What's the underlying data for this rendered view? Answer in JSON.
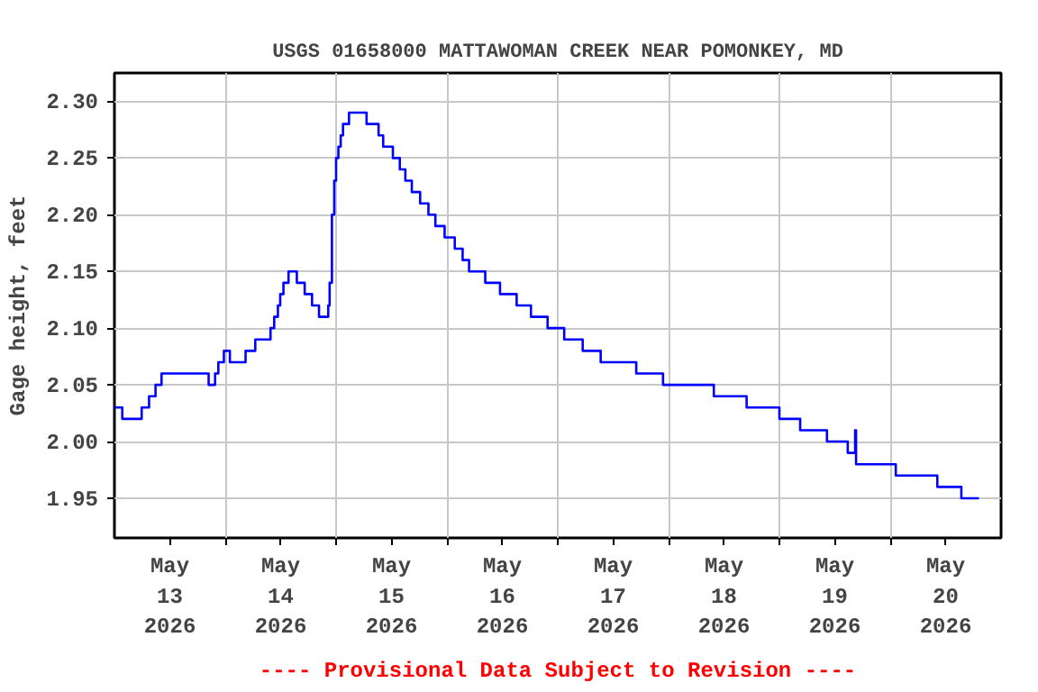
{
  "chart_data": {
    "type": "step",
    "title": "USGS 01658000 MATTAWOMAN CREEK NEAR POMONKEY, MD",
    "ylabel": "Gage height, feet",
    "annotations": [
      "---- Provisional Data Subject to Revision ----"
    ],
    "series": [
      {
        "color": "#0000ff",
        "x": [
          "2026-05-13T00:00",
          "2026-05-13T01:42",
          "2026-05-13T05:54",
          "2026-05-13T07:30",
          "2026-05-13T08:54",
          "2026-05-13T10:12",
          "2026-05-13T20:24",
          "2026-05-13T21:48",
          "2026-05-13T22:30",
          "2026-05-13T23:42",
          "2026-05-14T01:00",
          "2026-05-14T04:24",
          "2026-05-14T06:30",
          "2026-05-14T09:48",
          "2026-05-14T10:36",
          "2026-05-14T11:24",
          "2026-05-14T11:54",
          "2026-05-14T12:36",
          "2026-05-14T13:42",
          "2026-05-14T15:30",
          "2026-05-14T17:12",
          "2026-05-14T18:48",
          "2026-05-14T20:18",
          "2026-05-14T22:18",
          "2026-05-14T22:36",
          "2026-05-14T23:06",
          "2026-05-14T23:36",
          "2026-05-15T00:00",
          "2026-05-15T00:30",
          "2026-05-15T01:00",
          "2026-05-15T01:30",
          "2026-05-15T02:48",
          "2026-05-15T06:36",
          "2026-05-15T09:12",
          "2026-05-15T10:12",
          "2026-05-15T12:18",
          "2026-05-15T13:48",
          "2026-05-15T15:00",
          "2026-05-15T16:24",
          "2026-05-15T18:12",
          "2026-05-15T20:00",
          "2026-05-15T21:30",
          "2026-05-15T23:30",
          "2026-05-16T01:42",
          "2026-05-16T03:24",
          "2026-05-16T04:48",
          "2026-05-16T08:18",
          "2026-05-16T11:30",
          "2026-05-16T15:06",
          "2026-05-16T18:12",
          "2026-05-16T21:48",
          "2026-05-17T01:24",
          "2026-05-17T05:24",
          "2026-05-17T09:18",
          "2026-05-17T17:00",
          "2026-05-17T22:48",
          "2026-05-18T09:48",
          "2026-05-18T16:54",
          "2026-05-19T00:00",
          "2026-05-19T04:30",
          "2026-05-19T10:18",
          "2026-05-19T14:48",
          "2026-05-19T16:24",
          "2026-05-19T16:36",
          "2026-05-20T01:12",
          "2026-05-20T10:12",
          "2026-05-20T15:24",
          "2026-05-20T19:12"
        ],
        "values": [
          2.03,
          2.02,
          2.03,
          2.04,
          2.05,
          2.06,
          2.05,
          2.06,
          2.07,
          2.08,
          2.07,
          2.08,
          2.09,
          2.1,
          2.11,
          2.12,
          2.13,
          2.14,
          2.15,
          2.14,
          2.13,
          2.12,
          2.11,
          2.12,
          2.14,
          2.2,
          2.23,
          2.25,
          2.26,
          2.27,
          2.28,
          2.29,
          2.28,
          2.27,
          2.26,
          2.25,
          2.24,
          2.23,
          2.22,
          2.21,
          2.2,
          2.19,
          2.18,
          2.17,
          2.16,
          2.15,
          2.14,
          2.13,
          2.12,
          2.11,
          2.1,
          2.09,
          2.08,
          2.07,
          2.06,
          2.05,
          2.04,
          2.03,
          2.02,
          2.01,
          2.0,
          1.99,
          2.01,
          1.98,
          1.97,
          1.96,
          1.95,
          1.95
        ]
      }
    ],
    "xlim": [
      "2026-05-13T00:00",
      "2026-05-21T00:00"
    ],
    "xticks": [
      {
        "value": "2026-05-13T12:00",
        "label": "May\n13\n2026"
      },
      {
        "value": "2026-05-14T00:00",
        "label": null
      },
      {
        "value": "2026-05-14T12:00",
        "label": "May\n14\n2026"
      },
      {
        "value": "2026-05-15T00:00",
        "label": null
      },
      {
        "value": "2026-05-15T12:00",
        "label": "May\n15\n2026"
      },
      {
        "value": "2026-05-16T00:00",
        "label": null
      },
      {
        "value": "2026-05-16T12:00",
        "label": "May\n16\n2026"
      },
      {
        "value": "2026-05-17T00:00",
        "label": null
      },
      {
        "value": "2026-05-17T12:00",
        "label": "May\n17\n2026"
      },
      {
        "value": "2026-05-18T00:00",
        "label": null
      },
      {
        "value": "2026-05-18T12:00",
        "label": "May\n18\n2026"
      },
      {
        "value": "2026-05-19T00:00",
        "label": null
      },
      {
        "value": "2026-05-19T12:00",
        "label": "May\n19\n2026"
      },
      {
        "value": "2026-05-20T00:00",
        "label": null
      },
      {
        "value": "2026-05-20T12:00",
        "label": "May\n20\n2026"
      }
    ],
    "ylim": [
      1.915,
      2.325
    ],
    "yticks": [
      1.95,
      {
        "value": 2.0,
        "label": "2.00"
      },
      2.05,
      {
        "value": 2.1,
        "label": "2.10"
      },
      2.15,
      {
        "value": 2.2,
        "label": "2.20"
      },
      2.25,
      {
        "value": 2.3,
        "label": "2.30"
      }
    ],
    "grid": true
  }
}
